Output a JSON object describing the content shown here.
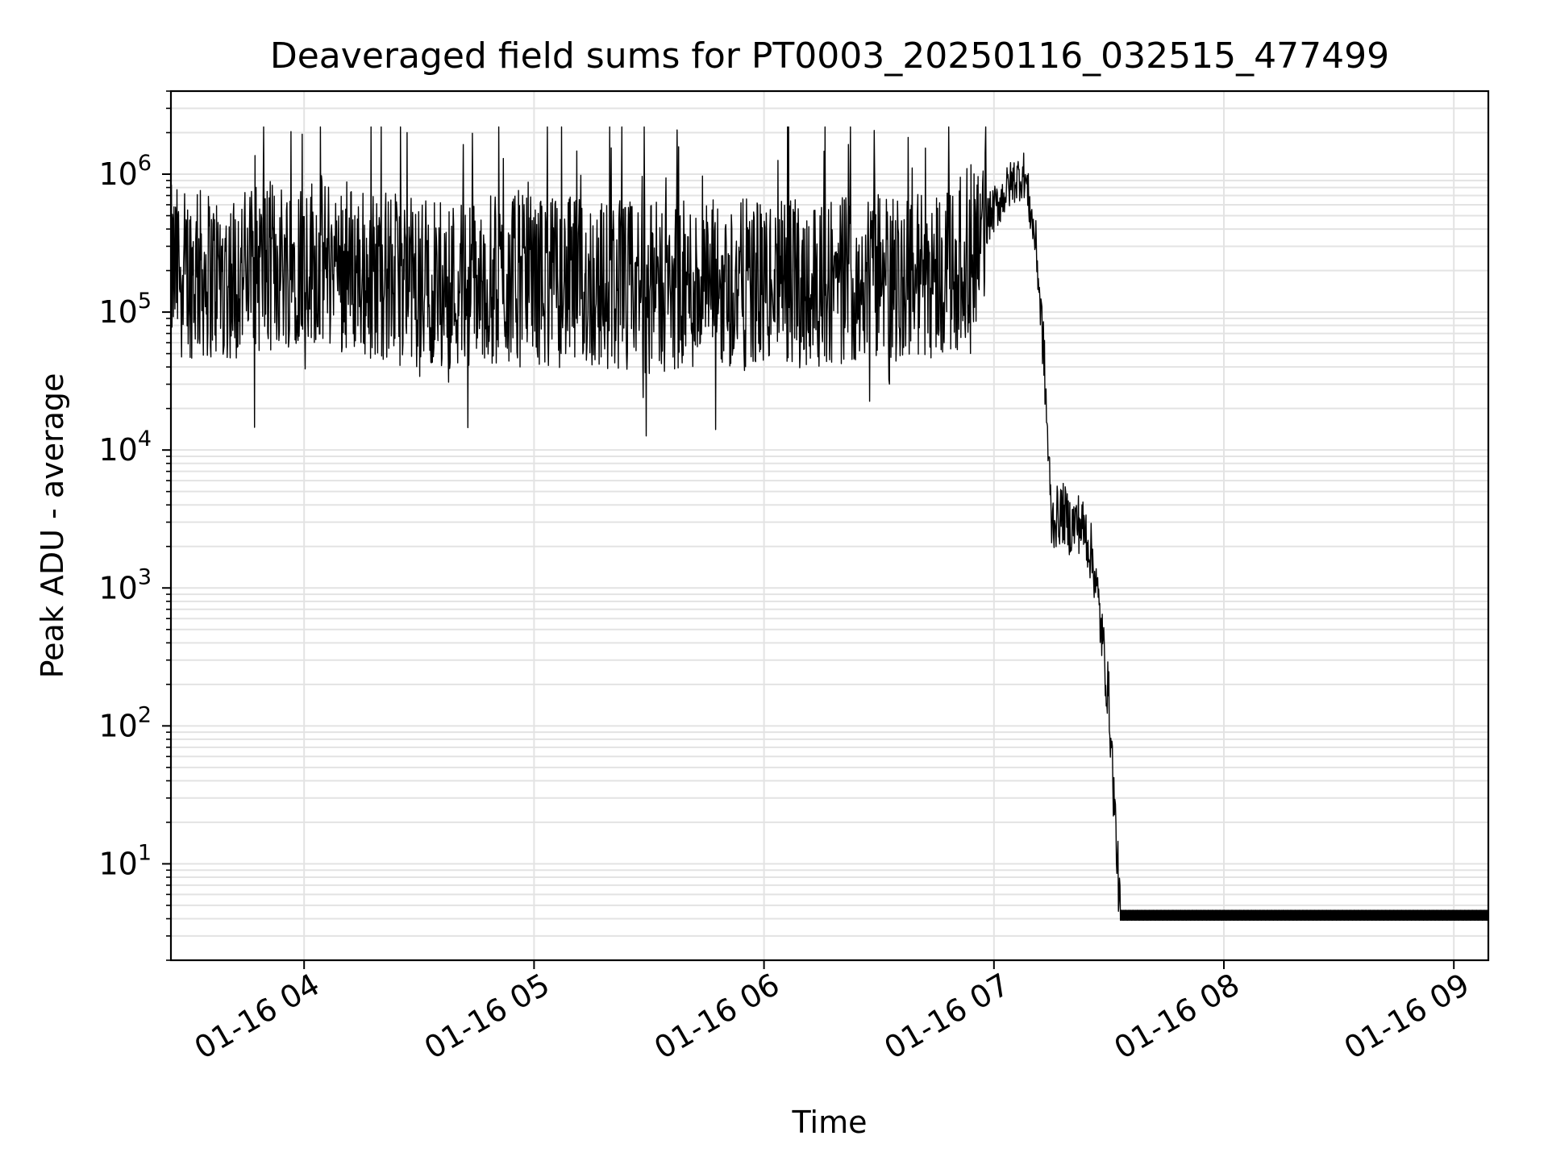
{
  "chart_data": {
    "type": "line",
    "title": "Deaveraged field sums for PT0003_20250116_032515_477499",
    "xlabel": "Time",
    "ylabel": "Peak ADU - average",
    "y_scale": "log",
    "grid": true,
    "legend": "none",
    "xlim": [
      "2025-01-16 03:25:15",
      "2025-01-16 09:09:00"
    ],
    "ylim": [
      2,
      4000000
    ],
    "x_ticks": [
      {
        "value": "2025-01-16 04:00",
        "label": "01-16 04"
      },
      {
        "value": "2025-01-16 05:00",
        "label": "01-16 05"
      },
      {
        "value": "2025-01-16 06:00",
        "label": "01-16 06"
      },
      {
        "value": "2025-01-16 07:00",
        "label": "01-16 07"
      },
      {
        "value": "2025-01-16 08:00",
        "label": "01-16 08"
      },
      {
        "value": "2025-01-16 09:00",
        "label": "01-16 09"
      }
    ],
    "y_ticks": [
      {
        "value": 10,
        "base": "10",
        "exp": "1"
      },
      {
        "value": 100,
        "base": "10",
        "exp": "2"
      },
      {
        "value": 1000,
        "base": "10",
        "exp": "3"
      },
      {
        "value": 10000,
        "base": "10",
        "exp": "4"
      },
      {
        "value": 100000,
        "base": "10",
        "exp": "5"
      },
      {
        "value": 1000000,
        "base": "10",
        "exp": "6"
      }
    ],
    "series": [
      {
        "color": "#000000",
        "x": [
          "2025-01-16 03:25:15",
          "2025-01-16 03:40",
          "2025-01-16 04:00",
          "2025-01-16 04:30",
          "2025-01-16 05:00",
          "2025-01-16 05:30",
          "2025-01-16 06:00",
          "2025-01-16 06:30",
          "2025-01-16 06:50",
          "2025-01-16 07:00",
          "2025-01-16 07:05",
          "2025-01-16 07:08",
          "2025-01-16 07:11",
          "2025-01-16 07:13",
          "2025-01-16 07:15",
          "2025-01-16 07:16",
          "2025-01-16 07:18",
          "2025-01-16 07:20",
          "2025-01-16 07:22",
          "2025-01-16 07:24",
          "2025-01-16 07:26",
          "2025-01-16 07:28",
          "2025-01-16 07:30",
          "2025-01-16 07:33",
          "2025-01-16 07:34",
          "2025-01-16 08:00",
          "2025-01-16 08:30",
          "2025-01-16 09:09"
        ],
        "y": [
          200000,
          180000,
          250000,
          160000,
          170000,
          150000,
          160000,
          180000,
          200000,
          550000,
          900000,
          1000000,
          300000,
          50000,
          3000,
          3200,
          3500,
          2800,
          3000,
          2500,
          1500,
          500,
          150,
          4,
          4,
          4,
          4,
          4
        ]
      }
    ]
  }
}
